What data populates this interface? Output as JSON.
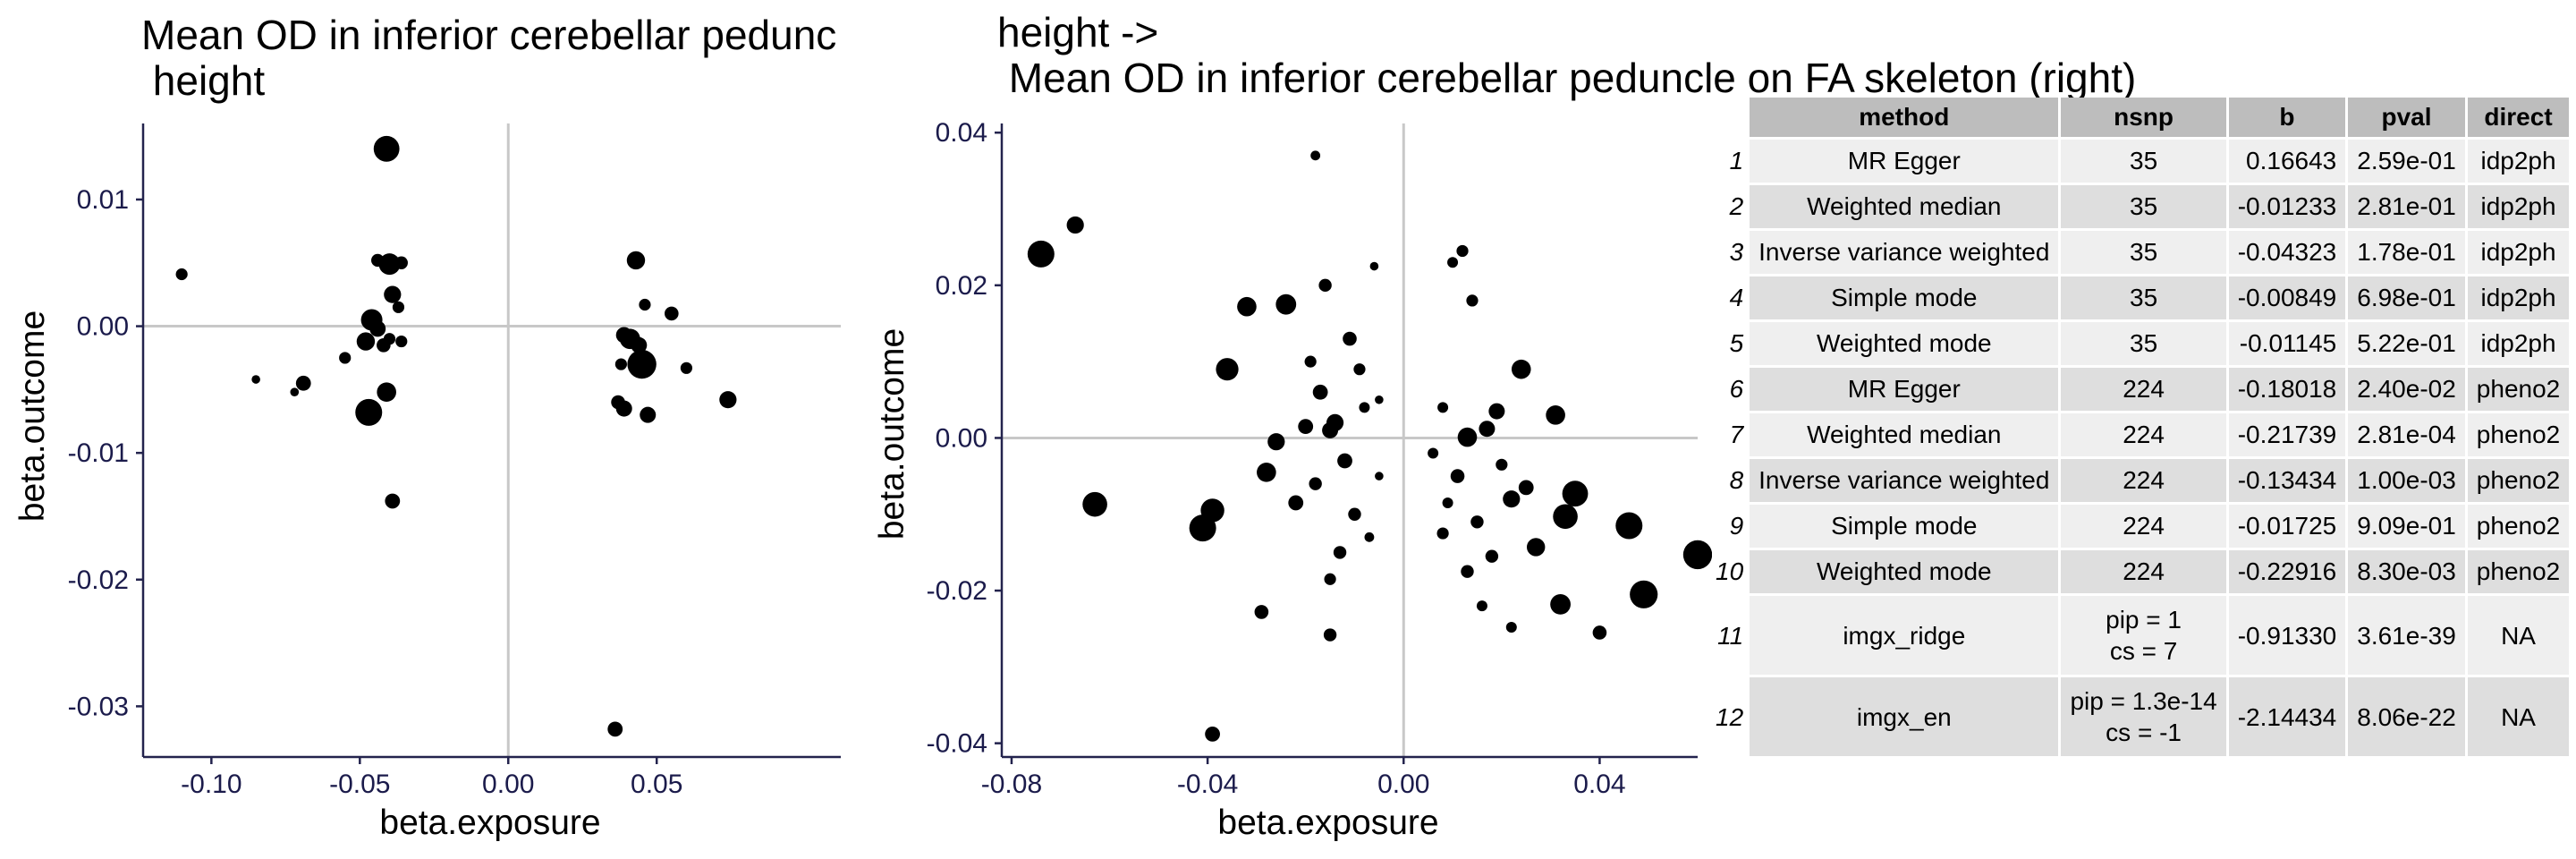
{
  "chart_data": [
    {
      "type": "scatter",
      "title_lines": [
        "Mean OD in inferior cerebellar pedunc",
        " height"
      ],
      "xlabel": "beta.exposure",
      "ylabel": "beta.outcome",
      "xlim": [
        -0.123,
        0.112
      ],
      "ylim": [
        -0.034,
        0.016
      ],
      "xticks": [
        -0.1,
        -0.05,
        0.0,
        0.05
      ],
      "xtick_labels": [
        "-0.10",
        "-0.05",
        "0.00",
        "0.05"
      ],
      "yticks": [
        -0.03,
        -0.02,
        -0.01,
        0.0,
        0.01
      ],
      "ytick_labels": [
        "-0.03",
        "-0.02",
        "-0.01",
        "0.00",
        "0.01"
      ],
      "ref_lines": {
        "x": 0,
        "y": 0
      },
      "grid": false,
      "points": [
        {
          "x": -0.041,
          "y": 0.014,
          "r": 2.4
        },
        {
          "x": -0.04,
          "y": 0.0049,
          "r": 2.0
        },
        {
          "x": -0.044,
          "y": 0.0052,
          "r": 1.2
        },
        {
          "x": -0.036,
          "y": 0.005,
          "r": 1.2
        },
        {
          "x": -0.039,
          "y": 0.0025,
          "r": 1.6
        },
        {
          "x": -0.037,
          "y": 0.0015,
          "r": 1.1
        },
        {
          "x": -0.11,
          "y": 0.0041,
          "r": 1.1
        },
        {
          "x": -0.046,
          "y": 0.0005,
          "r": 2.0
        },
        {
          "x": -0.044,
          "y": -0.0002,
          "r": 1.5
        },
        {
          "x": -0.048,
          "y": -0.0012,
          "r": 1.7
        },
        {
          "x": -0.042,
          "y": -0.0015,
          "r": 1.3
        },
        {
          "x": -0.04,
          "y": -0.001,
          "r": 1.1
        },
        {
          "x": -0.036,
          "y": -0.0012,
          "r": 1.1
        },
        {
          "x": -0.055,
          "y": -0.0025,
          "r": 1.1
        },
        {
          "x": -0.085,
          "y": -0.0042,
          "r": 0.8
        },
        {
          "x": -0.069,
          "y": -0.0045,
          "r": 1.4
        },
        {
          "x": -0.072,
          "y": -0.0052,
          "r": 0.8
        },
        {
          "x": -0.041,
          "y": -0.0052,
          "r": 1.8
        },
        {
          "x": -0.047,
          "y": -0.0068,
          "r": 2.5
        },
        {
          "x": -0.039,
          "y": -0.0138,
          "r": 1.4
        },
        {
          "x": 0.043,
          "y": 0.0052,
          "r": 1.7
        },
        {
          "x": 0.046,
          "y": 0.0017,
          "r": 1.1
        },
        {
          "x": 0.055,
          "y": 0.001,
          "r": 1.3
        },
        {
          "x": 0.039,
          "y": -0.0007,
          "r": 1.5
        },
        {
          "x": 0.041,
          "y": -0.001,
          "r": 1.9
        },
        {
          "x": 0.044,
          "y": -0.0015,
          "r": 1.5
        },
        {
          "x": 0.045,
          "y": -0.003,
          "r": 2.7
        },
        {
          "x": 0.038,
          "y": -0.003,
          "r": 1.1
        },
        {
          "x": 0.06,
          "y": -0.0033,
          "r": 1.1
        },
        {
          "x": 0.037,
          "y": -0.006,
          "r": 1.3
        },
        {
          "x": 0.039,
          "y": -0.0065,
          "r": 1.5
        },
        {
          "x": 0.047,
          "y": -0.007,
          "r": 1.5
        },
        {
          "x": 0.074,
          "y": -0.0058,
          "r": 1.6
        },
        {
          "x": 0.036,
          "y": -0.0318,
          "r": 1.4
        }
      ]
    },
    {
      "type": "scatter",
      "title_lines": [
        "height ->",
        " Mean OD in inferior cerebellar peduncle on FA skeleton (right)"
      ],
      "xlabel": "beta.exposure",
      "ylabel": "beta.outcome",
      "xlim": [
        -0.082,
        0.06
      ],
      "ylim": [
        -0.0418,
        0.0412
      ],
      "xticks": [
        -0.08,
        -0.04,
        0.0,
        0.04
      ],
      "xtick_labels": [
        "-0.08",
        "-0.04",
        "0.00",
        "0.04"
      ],
      "yticks": [
        -0.04,
        -0.02,
        0.0,
        0.02,
        0.04
      ],
      "ytick_labels": [
        "-0.04",
        "-0.02",
        "0.00",
        "0.02",
        "0.04"
      ],
      "ref_lines": {
        "x": 0,
        "y": 0
      },
      "grid": false,
      "points": [
        {
          "x": -0.074,
          "y": 0.0241,
          "r": 2.5
        },
        {
          "x": -0.067,
          "y": 0.0279,
          "r": 1.6
        },
        {
          "x": -0.063,
          "y": -0.0087,
          "r": 2.3
        },
        {
          "x": -0.041,
          "y": -0.0118,
          "r": 2.5
        },
        {
          "x": -0.039,
          "y": -0.0095,
          "r": 2.2
        },
        {
          "x": -0.036,
          "y": 0.009,
          "r": 2.1
        },
        {
          "x": -0.032,
          "y": 0.0172,
          "r": 1.8
        },
        {
          "x": -0.028,
          "y": -0.0045,
          "r": 1.8
        },
        {
          "x": -0.029,
          "y": -0.0228,
          "r": 1.3
        },
        {
          "x": -0.039,
          "y": -0.0388,
          "r": 1.4
        },
        {
          "x": -0.018,
          "y": 0.037,
          "r": 0.9
        },
        {
          "x": -0.024,
          "y": 0.0175,
          "r": 1.9
        },
        {
          "x": -0.015,
          "y": -0.0258,
          "r": 1.2
        },
        {
          "x": -0.026,
          "y": -0.0005,
          "r": 1.6
        },
        {
          "x": -0.02,
          "y": 0.0015,
          "r": 1.4
        },
        {
          "x": -0.022,
          "y": -0.0085,
          "r": 1.4
        },
        {
          "x": 0.06,
          "y": -0.0153,
          "r": 2.7
        },
        {
          "x": 0.049,
          "y": -0.0205,
          "r": 2.6
        },
        {
          "x": 0.046,
          "y": -0.0115,
          "r": 2.5
        },
        {
          "x": 0.035,
          "y": -0.0073,
          "r": 2.4
        },
        {
          "x": 0.033,
          "y": -0.0103,
          "r": 2.3
        },
        {
          "x": 0.032,
          "y": -0.0218,
          "r": 1.9
        },
        {
          "x": 0.04,
          "y": -0.0255,
          "r": 1.3
        },
        {
          "x": 0.031,
          "y": 0.003,
          "r": 1.8
        },
        {
          "x": 0.024,
          "y": 0.009,
          "r": 1.8
        },
        {
          "x": 0.027,
          "y": -0.0143,
          "r": 1.7
        },
        {
          "x": 0.022,
          "y": -0.0248,
          "r": 1.0
        },
        {
          "x": 0.022,
          "y": -0.008,
          "r": 1.6
        },
        {
          "x": 0.025,
          "y": -0.0065,
          "r": 1.4
        },
        {
          "x": 0.013,
          "y": 0.0001,
          "r": 1.8
        },
        {
          "x": 0.017,
          "y": 0.0012,
          "r": 1.5
        },
        {
          "x": 0.011,
          "y": -0.005,
          "r": 1.3
        },
        {
          "x": 0.015,
          "y": -0.011,
          "r": 1.2
        },
        {
          "x": 0.019,
          "y": 0.0035,
          "r": 1.5
        },
        {
          "x": 0.008,
          "y": -0.0125,
          "r": 1.1
        },
        {
          "x": 0.018,
          "y": -0.0155,
          "r": 1.2
        },
        {
          "x": 0.013,
          "y": -0.0175,
          "r": 1.2
        },
        {
          "x": 0.01,
          "y": 0.023,
          "r": 1.0
        },
        {
          "x": 0.012,
          "y": 0.0245,
          "r": 1.1
        },
        {
          "x": 0.014,
          "y": 0.018,
          "r": 1.1
        },
        {
          "x": 0.008,
          "y": 0.004,
          "r": 1.0
        },
        {
          "x": 0.006,
          "y": -0.002,
          "r": 1.0
        },
        {
          "x": 0.016,
          "y": -0.022,
          "r": 1.0
        },
        {
          "x": 0.02,
          "y": -0.0035,
          "r": 1.1
        },
        {
          "x": 0.009,
          "y": -0.0085,
          "r": 1.0
        },
        {
          "x": -0.017,
          "y": 0.006,
          "r": 1.4
        },
        {
          "x": -0.015,
          "y": 0.001,
          "r": 1.5
        },
        {
          "x": -0.012,
          "y": -0.003,
          "r": 1.4
        },
        {
          "x": -0.018,
          "y": -0.006,
          "r": 1.2
        },
        {
          "x": -0.011,
          "y": 0.013,
          "r": 1.3
        },
        {
          "x": -0.016,
          "y": 0.02,
          "r": 1.2
        },
        {
          "x": -0.009,
          "y": 0.009,
          "r": 1.1
        },
        {
          "x": -0.013,
          "y": -0.015,
          "r": 1.2
        },
        {
          "x": -0.01,
          "y": -0.01,
          "r": 1.2
        },
        {
          "x": -0.006,
          "y": 0.0225,
          "r": 0.8
        },
        {
          "x": -0.007,
          "y": -0.013,
          "r": 0.9
        },
        {
          "x": -0.014,
          "y": 0.002,
          "r": 1.6
        },
        {
          "x": -0.019,
          "y": 0.01,
          "r": 1.1
        },
        {
          "x": -0.008,
          "y": 0.004,
          "r": 1.0
        },
        {
          "x": -0.005,
          "y": 0.005,
          "r": 0.8
        },
        {
          "x": -0.005,
          "y": -0.005,
          "r": 0.8
        },
        {
          "x": -0.015,
          "y": -0.0185,
          "r": 1.1
        }
      ]
    }
  ],
  "table": {
    "columns": [
      "method",
      "nsnp",
      "b",
      "pval",
      "direct"
    ],
    "rows": [
      {
        "n": "1",
        "method": "MR Egger",
        "nsnp": "35",
        "b": "0.16643",
        "pval": "2.59e-01",
        "direct": "idp2ph"
      },
      {
        "n": "2",
        "method": "Weighted median",
        "nsnp": "35",
        "b": "-0.01233",
        "pval": "2.81e-01",
        "direct": "idp2ph"
      },
      {
        "n": "3",
        "method": "Inverse variance weighted",
        "nsnp": "35",
        "b": "-0.04323",
        "pval": "1.78e-01",
        "direct": "idp2ph"
      },
      {
        "n": "4",
        "method": "Simple mode",
        "nsnp": "35",
        "b": "-0.00849",
        "pval": "6.98e-01",
        "direct": "idp2ph"
      },
      {
        "n": "5",
        "method": "Weighted mode",
        "nsnp": "35",
        "b": "-0.01145",
        "pval": "5.22e-01",
        "direct": "idp2ph"
      },
      {
        "n": "6",
        "method": "MR Egger",
        "nsnp": "224",
        "b": "-0.18018",
        "pval": "2.40e-02",
        "direct": "pheno2"
      },
      {
        "n": "7",
        "method": "Weighted median",
        "nsnp": "224",
        "b": "-0.21739",
        "pval": "2.81e-04",
        "direct": "pheno2"
      },
      {
        "n": "8",
        "method": "Inverse variance weighted",
        "nsnp": "224",
        "b": "-0.13434",
        "pval": "1.00e-03",
        "direct": "pheno2"
      },
      {
        "n": "9",
        "method": "Simple mode",
        "nsnp": "224",
        "b": "-0.01725",
        "pval": "9.09e-01",
        "direct": "pheno2"
      },
      {
        "n": "10",
        "method": "Weighted mode",
        "nsnp": "224",
        "b": "-0.22916",
        "pval": "8.30e-03",
        "direct": "pheno2"
      },
      {
        "n": "11",
        "method": "imgx_ridge",
        "nsnp_lines": [
          "pip = 1",
          "cs = 7"
        ],
        "b": "-0.91330",
        "pval": "3.61e-39",
        "direct": "NA"
      },
      {
        "n": "12",
        "method": "imgx_en",
        "nsnp_lines": [
          "pip = 1.3e-14",
          "cs = -1"
        ],
        "b": "-2.14434",
        "pval": "8.06e-22",
        "direct": "NA"
      }
    ]
  }
}
